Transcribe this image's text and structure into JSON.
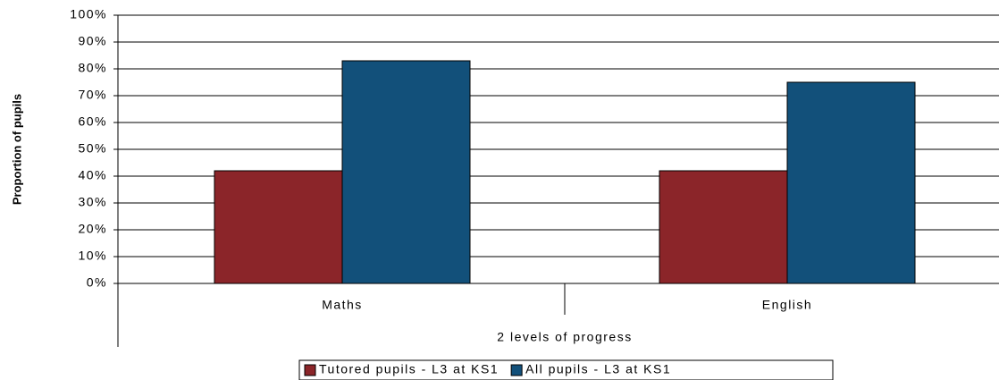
{
  "chart_data": {
    "type": "bar",
    "y_label": "Proportion of pupils",
    "x_label": "2 levels of progress",
    "categories": [
      "Maths",
      "English"
    ],
    "series": [
      {
        "name": "Tutored pupils - L3 at KS1",
        "color": "#8b2529",
        "values": [
          42,
          42
        ]
      },
      {
        "name": "All pupils - L3 at KS1",
        "color": "#12507a",
        "values": [
          83,
          75
        ]
      }
    ],
    "ylim": [
      0,
      100
    ],
    "yticks": [
      {
        "value": 0,
        "label": "0%"
      },
      {
        "value": 10,
        "label": "10%"
      },
      {
        "value": 20,
        "label": "20%"
      },
      {
        "value": 30,
        "label": "30%"
      },
      {
        "value": 40,
        "label": "40%"
      },
      {
        "value": 50,
        "label": "50%"
      },
      {
        "value": 60,
        "label": "60%"
      },
      {
        "value": 70,
        "label": "70%"
      },
      {
        "value": 80,
        "label": "80%"
      },
      {
        "value": 90,
        "label": "90%"
      },
      {
        "value": 100,
        "label": "100%"
      }
    ],
    "grid": true,
    "legend": "bottom"
  }
}
